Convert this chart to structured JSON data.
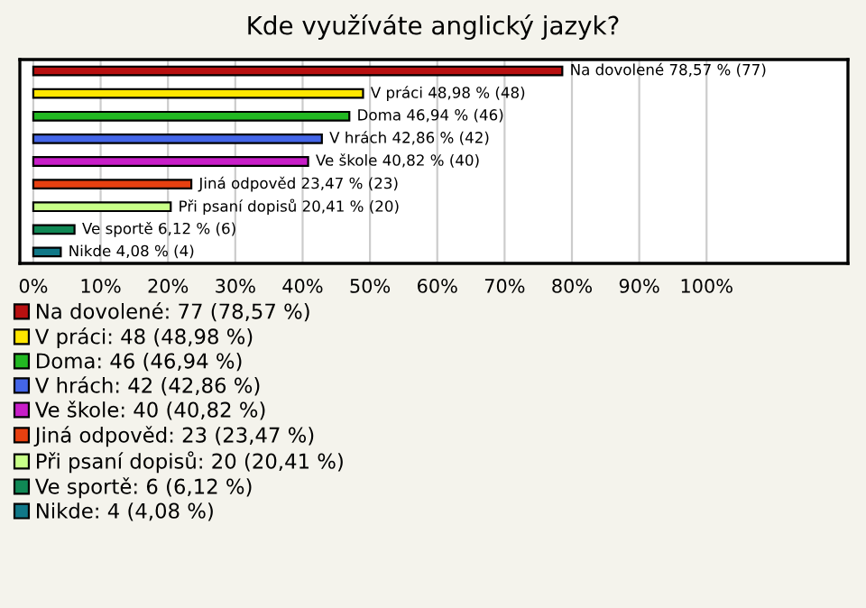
{
  "chart_data": {
    "type": "bar",
    "orientation": "horizontal",
    "title": "Kde využíváte anglický jazyk?",
    "categories": [
      null,
      null,
      null,
      null,
      null,
      null,
      null,
      null,
      null
    ],
    "series": [
      {
        "name": "Na dovolené: 77 (78,57 %)",
        "color": "#b81010",
        "values": [
          78.57,
          null,
          null,
          null,
          null,
          null,
          null,
          null,
          null
        ],
        "value_labels": [
          "Na dovolené 78,57 % (77)",
          null,
          null,
          null,
          null,
          null,
          null,
          null,
          null
        ]
      },
      {
        "name": "V práci: 48 (48,98 %)",
        "color": "#ffe600",
        "values": [
          null,
          48.98,
          null,
          null,
          null,
          null,
          null,
          null,
          null
        ],
        "value_labels": [
          null,
          "V práci 48,98 % (48)",
          null,
          null,
          null,
          null,
          null,
          null,
          null
        ]
      },
      {
        "name": "Doma: 46 (46,94 %)",
        "color": "#22b822",
        "values": [
          null,
          null,
          46.94,
          null,
          null,
          null,
          null,
          null,
          null
        ],
        "value_labels": [
          null,
          null,
          "Doma 46,94 % (46)",
          null,
          null,
          null,
          null,
          null,
          null
        ]
      },
      {
        "name": "V hrách: 42 (42,86 %)",
        "color": "#4466e8",
        "values": [
          null,
          null,
          null,
          42.86,
          null,
          null,
          null,
          null,
          null
        ],
        "value_labels": [
          null,
          null,
          null,
          "V hrách 42,86 % (42)",
          null,
          null,
          null,
          null,
          null
        ]
      },
      {
        "name": "Ve škole: 40 (40,82 %)",
        "color": "#c81ec8",
        "values": [
          null,
          null,
          null,
          null,
          40.82,
          null,
          null,
          null,
          null
        ],
        "value_labels": [
          null,
          null,
          null,
          null,
          "Ve škole 40,82 % (40)",
          null,
          null,
          null,
          null
        ]
      },
      {
        "name": "Jiná odpověd: 23 (23,47 %)",
        "color": "#e84010",
        "values": [
          null,
          null,
          null,
          null,
          null,
          23.47,
          null,
          null,
          null
        ],
        "value_labels": [
          null,
          null,
          null,
          null,
          null,
          "Jiná odpověd 23,47 % (23)",
          null,
          null,
          null
        ]
      },
      {
        "name": "Při psaní dopisů: 20 (20,41 %)",
        "color": "#c8ff88",
        "values": [
          null,
          null,
          null,
          null,
          null,
          null,
          20.41,
          null,
          null
        ],
        "value_labels": [
          null,
          null,
          null,
          null,
          null,
          null,
          "Při psaní dopisů 20,41 % (20)",
          null,
          null
        ]
      },
      {
        "name": "Ve sportě: 6 (6,12 %)",
        "color": "#108855",
        "values": [
          null,
          null,
          null,
          null,
          null,
          null,
          null,
          6.12,
          null
        ],
        "value_labels": [
          null,
          null,
          null,
          null,
          null,
          null,
          null,
          "Ve sportě 6,12 % (6)",
          null
        ]
      },
      {
        "name": "Nikde: 4 (4,08 %)",
        "color": "#107888",
        "values": [
          null,
          null,
          null,
          null,
          null,
          null,
          null,
          null,
          4.08
        ],
        "value_labels": [
          null,
          null,
          null,
          null,
          null,
          null,
          null,
          null,
          "Nikde 4,08 % (4)"
        ]
      }
    ],
    "xlim": [
      -2,
      121
    ],
    "xticks": [
      {
        "value": 0,
        "label": "0%"
      },
      {
        "value": 10,
        "label": "10%"
      },
      {
        "value": 20,
        "label": "20%"
      },
      {
        "value": 30,
        "label": "30%"
      },
      {
        "value": 40,
        "label": "40%"
      },
      {
        "value": 50,
        "label": "50%"
      },
      {
        "value": 60,
        "label": "60%"
      },
      {
        "value": 70,
        "label": "70%"
      },
      {
        "value": 80,
        "label": "80%"
      },
      {
        "value": 90,
        "label": "90%"
      },
      {
        "value": 100,
        "label": "100%"
      }
    ],
    "grid": "x",
    "legend": "bottom"
  }
}
